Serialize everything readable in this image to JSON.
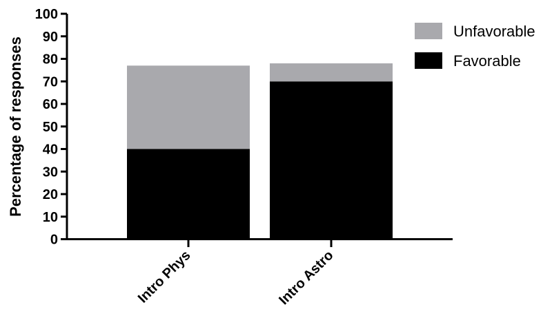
{
  "chart_data": {
    "type": "bar",
    "stacked": true,
    "categories": [
      "Intro Phys",
      "Intro Astro"
    ],
    "series": [
      {
        "name": "Favorable",
        "values": [
          40,
          70
        ],
        "color": "#000000"
      },
      {
        "name": "Unfavorable",
        "values": [
          37,
          8
        ],
        "color": "#a9a9ad"
      }
    ],
    "ylabel": "Percentage of responses",
    "xlabel": "",
    "ylim": [
      0,
      100
    ],
    "yticks": [
      0,
      10,
      20,
      30,
      40,
      50,
      60,
      70,
      80,
      90,
      100
    ],
    "grid": false,
    "legend": {
      "placement": "top-right",
      "entries": [
        {
          "label": "Unfavorable",
          "color": "#a9a9ad"
        },
        {
          "label": "Favorable",
          "color": "#000000"
        }
      ]
    }
  }
}
